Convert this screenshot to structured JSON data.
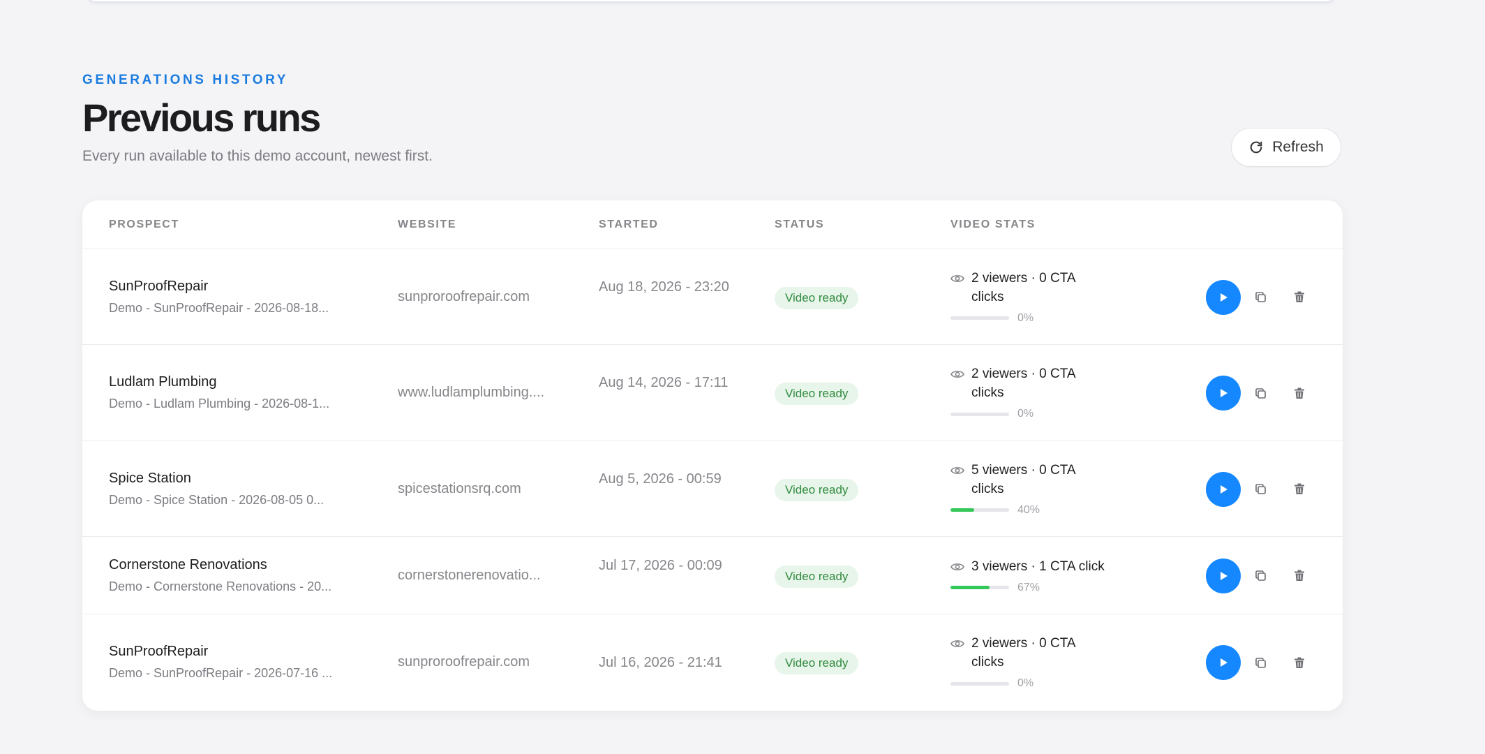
{
  "header": {
    "eyebrow": "GENERATIONS HISTORY",
    "title": "Previous runs",
    "subtitle": "Every run available to this demo account, newest first.",
    "refresh_label": "Refresh"
  },
  "table": {
    "columns": [
      "PROSPECT",
      "WEBSITE",
      "STARTED",
      "STATUS",
      "VIDEO STATS"
    ],
    "rows": [
      {
        "name": "SunProofRepair",
        "sub": "Demo - SunProofRepair - 2026-08-18...",
        "website": "sunproroofrepair.com",
        "started": "Aug 18, 2026 - 23:20",
        "status": "Video ready",
        "stats": "2 viewers · 0 CTA clicks",
        "progress": 0,
        "pct": "0%"
      },
      {
        "name": "Ludlam Plumbing",
        "sub": "Demo - Ludlam Plumbing - 2026-08-1...",
        "website": "www.ludlamplumbing....",
        "started": "Aug 14, 2026 - 17:11",
        "status": "Video ready",
        "stats": "2 viewers · 0 CTA clicks",
        "progress": 0,
        "pct": "0%"
      },
      {
        "name": "Spice Station",
        "sub": "Demo - Spice Station - 2026-08-05 0...",
        "website": "spicestationsrq.com",
        "started": "Aug 5, 2026 - 00:59",
        "status": "Video ready",
        "stats": "5 viewers · 0 CTA clicks",
        "progress": 40,
        "pct": "40%"
      },
      {
        "name": "Cornerstone Renovations",
        "sub": "Demo - Cornerstone Renovations - 20...",
        "website": "cornerstonerenovatio...",
        "started": "Jul 17, 2026 - 00:09",
        "status": "Video ready",
        "stats": "3 viewers · 1 CTA click",
        "progress": 67,
        "pct": "67%"
      },
      {
        "name": "SunProofRepair",
        "sub": "Demo - SunProofRepair - 2026-07-16 ...",
        "website": "sunproroofrepair.com",
        "started": "Jul 16, 2026 - 21:41",
        "status": "Video ready",
        "stats": "2 viewers · 0 CTA clicks",
        "progress": 0,
        "pct": "0%"
      }
    ]
  },
  "colors": {
    "accent": "#1a7be0",
    "play_button": "#1688ff",
    "badge_bg": "#e8f5ea",
    "badge_text": "#2f8a3e",
    "progress_fill": "#34c759"
  },
  "icons": {
    "refresh": "refresh-icon",
    "views": "eye-icon",
    "play": "play-icon",
    "duplicate": "copy-icon",
    "delete": "trash-icon"
  }
}
